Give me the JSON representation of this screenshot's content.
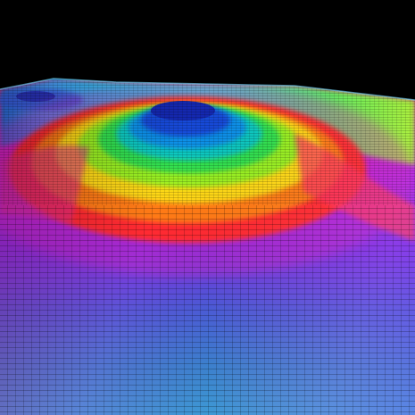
{
  "scene": {
    "background_color": "#000000",
    "subject": "3d-terrain-heightmap-render",
    "color_scale": [
      "#2a66d8",
      "#4a3ad0",
      "#a020e0",
      "#e020c0",
      "#ff2060",
      "#ff3a20",
      "#ff8a10",
      "#ffd810",
      "#c8f010",
      "#30e040",
      "#10d0a0",
      "#10b8e0",
      "#1050e0",
      "#1020b0"
    ],
    "colormap_name": "rainbow"
  }
}
